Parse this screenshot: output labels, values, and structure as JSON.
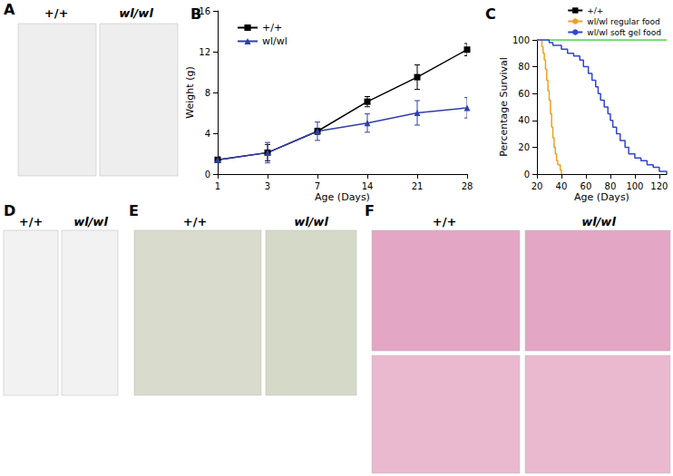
{
  "photo_panels": [
    {
      "label": "A",
      "captions": [
        "+/+",
        "wl/wl"
      ]
    },
    {
      "label": "D",
      "captions": [
        "+/+",
        "wl/wl"
      ]
    },
    {
      "label": "E",
      "captions": [
        "+/+",
        "wl/wl"
      ]
    },
    {
      "label": "F",
      "captions": [
        "+/+",
        "wl/wl"
      ]
    }
  ],
  "chart_data": [
    {
      "type": "line",
      "title": "B",
      "xlabel": "Age (Days)",
      "ylabel": "Weight (g)",
      "categories": [
        "1",
        "3",
        "7",
        "14",
        "21",
        "28"
      ],
      "ylim": [
        0,
        16
      ],
      "yticks": [
        0,
        4,
        8,
        12,
        16
      ],
      "legend": "upper left",
      "series": [
        {
          "name": "+/+",
          "color": "#000000",
          "marker": "square",
          "values": [
            1.4,
            2.1,
            4.2,
            7.1,
            9.5,
            12.2
          ],
          "errors": [
            0.2,
            0.8,
            0.3,
            0.5,
            1.2,
            0.6
          ]
        },
        {
          "name": "wl/wl",
          "color": "#2f3fa8",
          "marker": "triangle",
          "values": [
            1.4,
            2.1,
            4.2,
            5.0,
            6.0,
            6.5
          ],
          "errors": [
            0.3,
            1.0,
            0.9,
            0.9,
            1.2,
            1.0
          ]
        }
      ]
    },
    {
      "type": "line",
      "title": "C",
      "xlabel": "Age (Days)",
      "ylabel": "Percentage Survival",
      "xlim": [
        20,
        126
      ],
      "xticks": [
        20,
        40,
        60,
        80,
        100,
        120
      ],
      "ylim": [
        0,
        100
      ],
      "yticks": [
        0,
        20,
        40,
        60,
        80,
        100
      ],
      "line_style": "step",
      "legend": "upper right",
      "series": [
        {
          "name": "+/+",
          "color": "#33cc33",
          "x": [
            20,
            126
          ],
          "values": [
            100,
            100
          ]
        },
        {
          "name": "wl/wl regular food",
          "color": "#f0a020",
          "x": [
            20,
            23,
            24,
            25,
            26,
            27,
            28,
            29,
            30,
            31,
            32,
            33,
            34,
            35,
            36,
            37,
            39,
            40
          ],
          "values": [
            100,
            100,
            95,
            90,
            85,
            78,
            70,
            62,
            55,
            45,
            35,
            27,
            20,
            15,
            10,
            7,
            3,
            0
          ]
        },
        {
          "name": "wl/wl soft gel food",
          "color": "#3344cc",
          "x": [
            20,
            28,
            30,
            33,
            40,
            45,
            50,
            55,
            58,
            62,
            65,
            68,
            70,
            72,
            75,
            78,
            80,
            82,
            85,
            88,
            92,
            95,
            100,
            105,
            110,
            115,
            120,
            126
          ],
          "values": [
            100,
            100,
            98,
            96,
            93,
            90,
            88,
            85,
            80,
            75,
            70,
            65,
            60,
            55,
            50,
            45,
            40,
            35,
            30,
            25,
            20,
            15,
            12,
            10,
            7,
            5,
            2,
            0
          ]
        }
      ]
    }
  ]
}
